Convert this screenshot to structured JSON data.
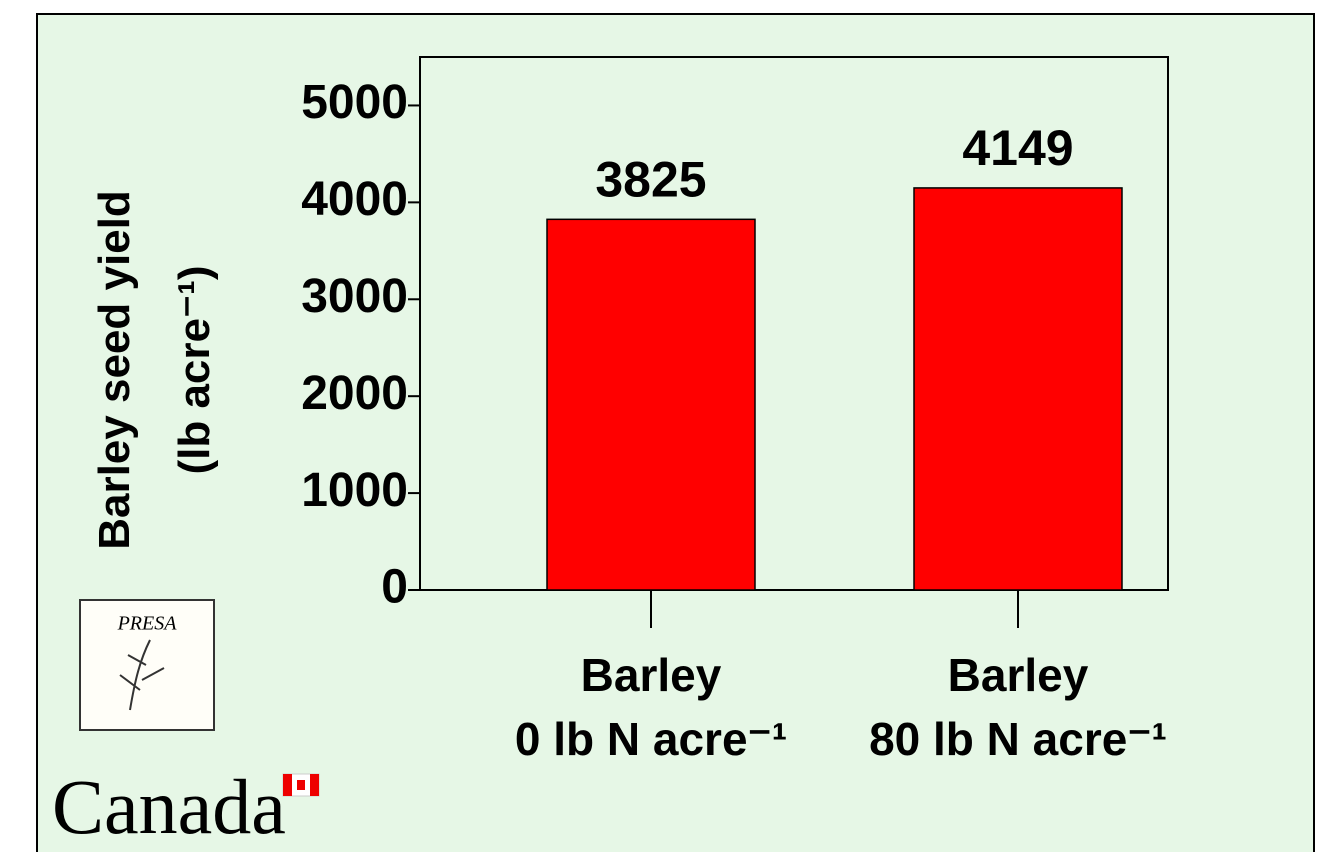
{
  "chart_data": {
    "type": "bar",
    "y_axis_label": "Barley seed yield\n(lb acre⁻¹)",
    "categories": [
      "Barley\n0 lb N acre⁻¹",
      "Barley\n80 lb N acre⁻¹"
    ],
    "values": [
      3825,
      4149
    ],
    "color": "#ff0000",
    "ylim": [
      0,
      5500
    ],
    "yticks": [
      0,
      1000,
      2000,
      3000,
      4000,
      5000
    ],
    "grid": false
  },
  "logos": {
    "presa": "PRESA",
    "wordmark": "Canada"
  }
}
